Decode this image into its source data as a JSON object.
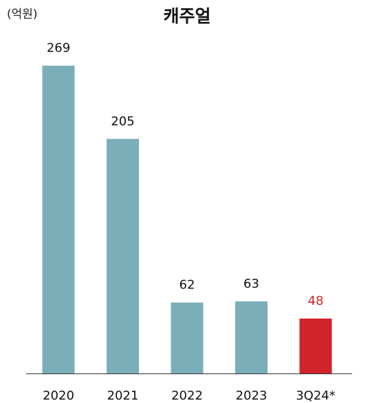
{
  "chart_data": {
    "type": "bar",
    "title": "캐주얼",
    "unit_label": "(억원)",
    "categories": [
      "2020",
      "2021",
      "2022",
      "2023",
      "3Q24*"
    ],
    "values": [
      269,
      205,
      62,
      63,
      48
    ],
    "ylim": [
      0,
      300
    ],
    "grid": false,
    "bar_colors": [
      "#7aaeb8",
      "#7aaeb8",
      "#7aaeb8",
      "#7aaeb8",
      "#d0232a"
    ],
    "value_label_colors": [
      "#111111",
      "#111111",
      "#111111",
      "#111111",
      "#d0232a"
    ],
    "axis_color": "#333333"
  }
}
